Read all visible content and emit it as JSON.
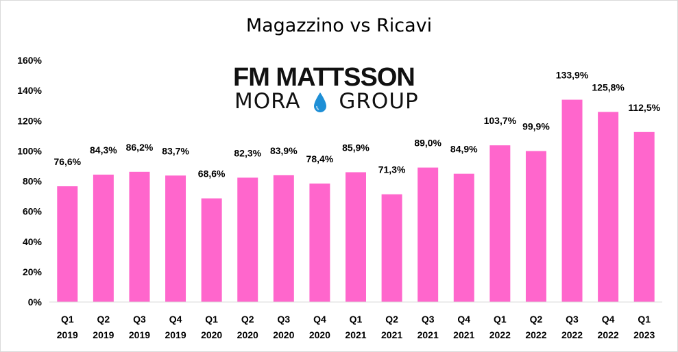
{
  "logo": {
    "line1": "FM MATTSSON",
    "line2_left": "MORA",
    "line2_right": "GROUP",
    "drop_color": "#1e8fd6"
  },
  "chart_data": {
    "type": "bar",
    "title": "Magazzino vs Ricavi",
    "xlabel": "",
    "ylabel": "",
    "bar_color": "#ff66cc",
    "grid": false,
    "ylim": [
      0,
      160
    ],
    "yticks": [
      0,
      20,
      40,
      60,
      80,
      100,
      120,
      140,
      160
    ],
    "ytick_labels": [
      "0%",
      "20%",
      "40%",
      "60%",
      "80%",
      "100%",
      "120%",
      "140%",
      "160%"
    ],
    "categories": [
      [
        "Q1",
        "2019"
      ],
      [
        "Q2",
        "2019"
      ],
      [
        "Q3",
        "2019"
      ],
      [
        "Q4",
        "2019"
      ],
      [
        "Q1",
        "2020"
      ],
      [
        "Q2",
        "2020"
      ],
      [
        "Q3",
        "2020"
      ],
      [
        "Q4",
        "2020"
      ],
      [
        "Q1",
        "2021"
      ],
      [
        "Q2",
        "2021"
      ],
      [
        "Q3",
        "2021"
      ],
      [
        "Q4",
        "2021"
      ],
      [
        "Q1",
        "2022"
      ],
      [
        "Q2",
        "2022"
      ],
      [
        "Q3",
        "2022"
      ],
      [
        "Q4",
        "2022"
      ],
      [
        "Q1",
        "2023"
      ]
    ],
    "values": [
      76.6,
      84.3,
      86.2,
      83.7,
      68.6,
      82.3,
      83.9,
      78.4,
      85.9,
      71.3,
      89.0,
      84.9,
      103.7,
      99.9,
      133.9,
      125.8,
      112.5
    ],
    "data_labels": [
      "76,6%",
      "84,3%",
      "86,2%",
      "83,7%",
      "68,6%",
      "82,3%",
      "83,9%",
      "78,4%",
      "85,9%",
      "71,3%",
      "89,0%",
      "84,9%",
      "103,7%",
      "99,9%",
      "133,9%",
      "125,8%",
      "112,5%"
    ]
  }
}
